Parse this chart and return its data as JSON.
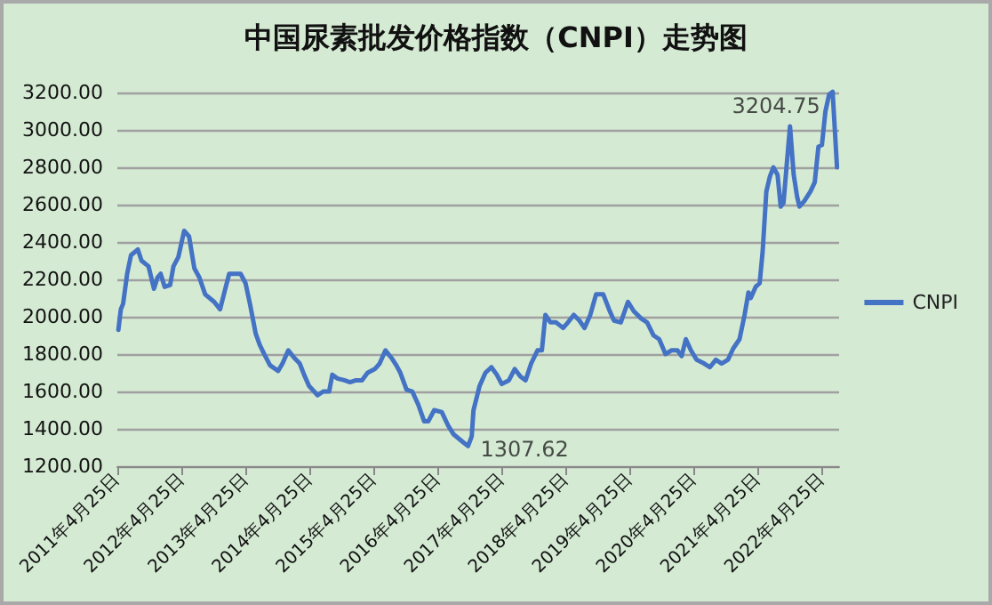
{
  "chart_data": {
    "type": "line",
    "title": "中国尿素批发价格指数（CNPI）走势图",
    "x": [
      "2011-05-01",
      "2011-05-15",
      "2011-05-28",
      "2011-06-20",
      "2011-07-12",
      "2011-08-20",
      "2011-09-10",
      "2011-10-20",
      "2011-11-20",
      "2011-12-10",
      "2011-12-28",
      "2012-01-20",
      "2012-02-20",
      "2012-03-10",
      "2012-04-07",
      "2012-05-10",
      "2012-06-07",
      "2012-07-07",
      "2012-08-05",
      "2012-09-07",
      "2012-10-28",
      "2012-12-01",
      "2012-12-28",
      "2013-01-22",
      "2013-02-25",
      "2013-03-28",
      "2013-04-25",
      "2013-05-20",
      "2013-06-22",
      "2013-07-15",
      "2013-08-10",
      "2013-09-12",
      "2013-10-28",
      "2013-11-22",
      "2013-12-25",
      "2014-01-28",
      "2014-02-28",
      "2014-03-25",
      "2014-04-22",
      "2014-06-10",
      "2014-07-12",
      "2014-08-15",
      "2014-09-02",
      "2014-09-30",
      "2014-11-10",
      "2014-12-12",
      "2015-01-15",
      "2015-02-18",
      "2015-03-22",
      "2015-05-02",
      "2015-05-30",
      "2015-07-02",
      "2015-08-05",
      "2015-09-02",
      "2015-09-25",
      "2015-10-30",
      "2015-12-02",
      "2016-01-05",
      "2016-02-08",
      "2016-03-02",
      "2016-04-05",
      "2016-05-18",
      "2016-06-22",
      "2016-07-25",
      "2016-09-15",
      "2016-10-15",
      "2016-11-05",
      "2016-11-15",
      "2016-12-20",
      "2017-01-22",
      "2017-02-25",
      "2017-03-28",
      "2017-04-25",
      "2017-06-05",
      "2017-07-08",
      "2017-08-10",
      "2017-09-08",
      "2017-10-10",
      "2017-11-15",
      "2017-12-10",
      "2017-12-30",
      "2018-01-28",
      "2018-03-01",
      "2018-04-10",
      "2018-05-08",
      "2018-06-10",
      "2018-07-12",
      "2018-08-10",
      "2018-09-12",
      "2018-10-15",
      "2018-11-25",
      "2018-12-28",
      "2019-01-25",
      "2019-03-05",
      "2019-04-15",
      "2019-05-18",
      "2019-06-30",
      "2019-08-02",
      "2019-09-08",
      "2019-10-10",
      "2019-11-15",
      "2019-12-18",
      "2020-01-22",
      "2020-02-15",
      "2020-03-10",
      "2020-04-08",
      "2020-05-10",
      "2020-06-22",
      "2020-07-25",
      "2020-08-28",
      "2020-09-30",
      "2020-11-05",
      "2020-12-05",
      "2021-01-10",
      "2021-02-08",
      "2021-03-02",
      "2021-03-15",
      "2021-04-12",
      "2021-05-05",
      "2021-05-22",
      "2021-06-12",
      "2021-07-02",
      "2021-07-22",
      "2021-08-15",
      "2021-09-02",
      "2021-09-18",
      "2021-10-05",
      "2021-10-25",
      "2021-11-15",
      "2021-12-05",
      "2021-12-18",
      "2022-01-15",
      "2022-02-18",
      "2022-03-15",
      "2022-04-05",
      "2022-04-25",
      "2022-05-15",
      "2022-06-05",
      "2022-06-25",
      "2022-07-20"
    ],
    "series": [
      {
        "name": "CNPI",
        "color": "#4472c4",
        "values": [
          1930,
          2040,
          2070,
          2230,
          2330,
          2360,
          2300,
          2270,
          2150,
          2210,
          2230,
          2160,
          2170,
          2270,
          2320,
          2460,
          2430,
          2260,
          2210,
          2120,
          2080,
          2040,
          2140,
          2230,
          2230,
          2230,
          2180,
          2070,
          1910,
          1850,
          1800,
          1740,
          1710,
          1750,
          1820,
          1780,
          1750,
          1690,
          1630,
          1580,
          1600,
          1600,
          1690,
          1670,
          1660,
          1650,
          1660,
          1660,
          1700,
          1720,
          1750,
          1820,
          1780,
          1740,
          1700,
          1610,
          1600,
          1530,
          1440,
          1440,
          1500,
          1490,
          1420,
          1370,
          1330,
          1307.62,
          1360,
          1500,
          1630,
          1700,
          1730,
          1690,
          1640,
          1660,
          1720,
          1680,
          1660,
          1750,
          1820,
          1820,
          2010,
          1970,
          1970,
          1940,
          1970,
          2010,
          1980,
          1940,
          2010,
          2120,
          2120,
          2040,
          1980,
          1970,
          2080,
          2030,
          1990,
          1970,
          1900,
          1880,
          1800,
          1820,
          1820,
          1790,
          1880,
          1820,
          1770,
          1750,
          1730,
          1770,
          1750,
          1770,
          1830,
          1880,
          2010,
          2130,
          2100,
          2160,
          2180,
          2350,
          2670,
          2750,
          2800,
          2760,
          2590,
          2610,
          2800,
          3020,
          2760,
          2640,
          2590,
          2620,
          2670,
          2720,
          2910,
          2920,
          3100,
          3190,
          3204.75,
          2800
        ]
      }
    ],
    "xlim": [
      "2011-04-25",
      "2022-08-01"
    ],
    "xticks": [
      {
        "value": "2011-04-25",
        "label": "2011年4月25日"
      },
      {
        "value": "2012-04-25",
        "label": "2012年4月25日"
      },
      {
        "value": "2013-04-25",
        "label": "2013年4月25日"
      },
      {
        "value": "2014-04-25",
        "label": "2014年4月25日"
      },
      {
        "value": "2015-04-25",
        "label": "2015年4月25日"
      },
      {
        "value": "2016-04-25",
        "label": "2016年4月25日"
      },
      {
        "value": "2017-04-25",
        "label": "2017年4月25日"
      },
      {
        "value": "2018-04-25",
        "label": "2018年4月25日"
      },
      {
        "value": "2019-04-25",
        "label": "2019年4月25日"
      },
      {
        "value": "2020-04-25",
        "label": "2020年4月25日"
      },
      {
        "value": "2021-04-25",
        "label": "2021年4月25日"
      },
      {
        "value": "2022-04-25",
        "label": "2022年4月25日"
      }
    ],
    "ylim": [
      1200,
      3210
    ],
    "yticks": [
      {
        "value": 1200,
        "label": "1200.00"
      },
      {
        "value": 1400,
        "label": "1400.00"
      },
      {
        "value": 1600,
        "label": "1600.00"
      },
      {
        "value": 1800,
        "label": "1800.00"
      },
      {
        "value": 2000,
        "label": "2000.00"
      },
      {
        "value": 2200,
        "label": "2200.00"
      },
      {
        "value": 2400,
        "label": "2400.00"
      },
      {
        "value": 2600,
        "label": "2600.00"
      },
      {
        "value": 2800,
        "label": "2800.00"
      },
      {
        "value": 3000,
        "label": "3000.00"
      },
      {
        "value": 3200,
        "label": "3200.00"
      }
    ],
    "annotations": [
      {
        "text": "3204.75",
        "x": "2022-06-25",
        "y": 3204.75
      },
      {
        "text": "1307.62",
        "x": "2016-10-15",
        "y": 1307.62
      }
    ],
    "grid": "y",
    "legend": "right",
    "marker": "none",
    "line_style": "solid"
  }
}
